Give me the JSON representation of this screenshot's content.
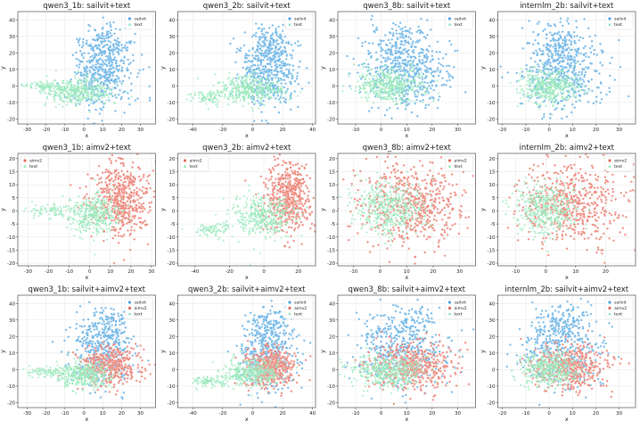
{
  "colors": {
    "sailvit": "#4aa3e0",
    "aimv2": "#e8685a",
    "text": "#6fe0a0"
  },
  "chart_data": [
    {
      "type": "scatter",
      "title": "qwen3_1b: sailvit+text",
      "xlabel": "x",
      "ylabel": "y",
      "xlim": [
        -35,
        38
      ],
      "ylim": [
        -23,
        45
      ],
      "xticks": [
        -30,
        -20,
        -10,
        0,
        10,
        20,
        30
      ],
      "yticks": [
        -20,
        -10,
        0,
        10,
        20,
        30,
        40
      ],
      "grid": true,
      "legend_position": "top-right",
      "series": [
        {
          "name": "sailvit",
          "marker": "circle",
          "color": "#4aa3e0",
          "clusters": [
            {
              "cx": 10,
              "cy": 8,
              "sx": 8,
              "sy": 11,
              "n": 420
            },
            {
              "cx": 12,
              "cy": 25,
              "sx": 6,
              "sy": 7,
              "n": 120
            }
          ]
        },
        {
          "name": "text",
          "marker": "triangle",
          "color": "#6fe0a0",
          "clusters": [
            {
              "cx": -3,
              "cy": -3,
              "sx": 9,
              "sy": 4,
              "n": 380
            },
            {
              "cx": -20,
              "cy": 0,
              "sx": 6,
              "sy": 1.5,
              "n": 80
            }
          ]
        }
      ]
    },
    {
      "type": "scatter",
      "title": "qwen3_2b: sailvit+text",
      "xlabel": "x",
      "ylabel": "y",
      "xlim": [
        -50,
        42
      ],
      "ylim": [
        -23,
        45
      ],
      "xticks": [
        -40,
        -20,
        0,
        20,
        40
      ],
      "yticks": [
        -20,
        -10,
        0,
        10,
        20,
        30,
        40
      ],
      "grid": true,
      "legend_position": "top-right",
      "series": [
        {
          "name": "sailvit",
          "marker": "circle",
          "color": "#4aa3e0",
          "clusters": [
            {
              "cx": 10,
              "cy": 8,
              "sx": 10,
              "sy": 11,
              "n": 420
            },
            {
              "cx": 12,
              "cy": 25,
              "sx": 7,
              "sy": 7,
              "n": 120
            }
          ]
        },
        {
          "name": "text",
          "marker": "triangle",
          "color": "#6fe0a0",
          "clusters": [
            {
              "cx": -2,
              "cy": -2,
              "sx": 11,
              "sy": 4,
              "n": 380
            },
            {
              "cx": -30,
              "cy": -7,
              "sx": 6,
              "sy": 2,
              "n": 80
            }
          ]
        }
      ]
    },
    {
      "type": "scatter",
      "title": "qwen3_8b: sailvit+text",
      "xlabel": "x",
      "ylabel": "y",
      "xlim": [
        -17,
        37
      ],
      "ylim": [
        -23,
        45
      ],
      "xticks": [
        -10,
        0,
        10,
        20,
        30
      ],
      "yticks": [
        -20,
        -10,
        0,
        10,
        20,
        30,
        40
      ],
      "grid": true,
      "legend_position": "top-right",
      "series": [
        {
          "name": "sailvit",
          "marker": "circle",
          "color": "#4aa3e0",
          "clusters": [
            {
              "cx": 9,
              "cy": 8,
              "sx": 9,
              "sy": 12,
              "n": 450
            },
            {
              "cx": 8,
              "cy": 25,
              "sx": 6,
              "sy": 7,
              "n": 120
            }
          ]
        },
        {
          "name": "text",
          "marker": "triangle",
          "color": "#6fe0a0",
          "clusters": [
            {
              "cx": 3,
              "cy": 0,
              "sx": 7,
              "sy": 5,
              "n": 450
            }
          ]
        }
      ]
    },
    {
      "type": "scatter",
      "title": "internlm_2b: sailvit+text",
      "xlabel": "x",
      "ylabel": "y",
      "xlim": [
        -22,
        37
      ],
      "ylim": [
        -23,
        45
      ],
      "xticks": [
        -20,
        -10,
        0,
        10,
        20,
        30
      ],
      "yticks": [
        -20,
        -10,
        0,
        10,
        20,
        30,
        40
      ],
      "grid": true,
      "legend_position": "top-right",
      "series": [
        {
          "name": "sailvit",
          "marker": "circle",
          "color": "#4aa3e0",
          "clusters": [
            {
              "cx": 5,
              "cy": 8,
              "sx": 9,
              "sy": 12,
              "n": 450
            },
            {
              "cx": 5,
              "cy": 25,
              "sx": 6,
              "sy": 7,
              "n": 120
            }
          ]
        },
        {
          "name": "text",
          "marker": "triangle",
          "color": "#6fe0a0",
          "clusters": [
            {
              "cx": 0,
              "cy": 0,
              "sx": 6,
              "sy": 5,
              "n": 420
            }
          ]
        }
      ]
    },
    {
      "type": "scatter",
      "title": "qwen3_1b: aimv2+text",
      "xlabel": "x",
      "ylabel": "y",
      "xlim": [
        -35,
        32
      ],
      "ylim": [
        -21,
        22
      ],
      "xticks": [
        -30,
        -20,
        -10,
        0,
        10,
        20,
        30
      ],
      "yticks": [
        -20,
        -15,
        -10,
        -5,
        0,
        5,
        10,
        15,
        20
      ],
      "grid": true,
      "legend_position": "top-left",
      "series": [
        {
          "name": "aimv2",
          "marker": "circle",
          "color": "#e8685a",
          "clusters": [
            {
              "cx": 15,
              "cy": 5,
              "sx": 7,
              "sy": 7,
              "n": 520
            }
          ]
        },
        {
          "name": "text",
          "marker": "triangle",
          "color": "#6fe0a0",
          "clusters": [
            {
              "cx": 2,
              "cy": -1,
              "sx": 6,
              "sy": 3.5,
              "n": 380
            },
            {
              "cx": -20,
              "cy": 0,
              "sx": 6,
              "sy": 1.2,
              "n": 80
            }
          ]
        }
      ]
    },
    {
      "type": "scatter",
      "title": "qwen3_2b: aimv2+text",
      "xlabel": "x",
      "ylabel": "y",
      "xlim": [
        -50,
        30
      ],
      "ylim": [
        -21,
        22
      ],
      "xticks": [
        -40,
        -20,
        0,
        20
      ],
      "yticks": [
        -20,
        -15,
        -10,
        -5,
        0,
        5,
        10,
        15,
        20
      ],
      "grid": true,
      "legend_position": "top-left",
      "series": [
        {
          "name": "aimv2",
          "marker": "circle",
          "color": "#e8685a",
          "clusters": [
            {
              "cx": 14,
              "cy": 5,
              "sx": 7,
              "sy": 7,
              "n": 520
            }
          ]
        },
        {
          "name": "text",
          "marker": "triangle",
          "color": "#6fe0a0",
          "clusters": [
            {
              "cx": 0,
              "cy": -2,
              "sx": 9,
              "sy": 4,
              "n": 380
            },
            {
              "cx": -30,
              "cy": -7,
              "sx": 6,
              "sy": 1.5,
              "n": 80
            }
          ]
        }
      ]
    },
    {
      "type": "scatter",
      "title": "qwen3_8b: aimv2+text",
      "xlabel": "x",
      "ylabel": "y",
      "xlim": [
        -16,
        36
      ],
      "ylim": [
        -21,
        22
      ],
      "xticks": [
        -10,
        0,
        10,
        20,
        30
      ],
      "yticks": [
        -20,
        -15,
        -10,
        -5,
        0,
        5,
        10,
        15,
        20
      ],
      "grid": true,
      "legend_position": "top-right",
      "series": [
        {
          "name": "aimv2",
          "marker": "circle",
          "color": "#e8685a",
          "clusters": [
            {
              "cx": 12,
              "cy": 3,
              "sx": 10,
              "sy": 8,
              "n": 550
            }
          ]
        },
        {
          "name": "text",
          "marker": "triangle",
          "color": "#6fe0a0",
          "clusters": [
            {
              "cx": 4,
              "cy": 1,
              "sx": 7,
              "sy": 5,
              "n": 450
            }
          ]
        }
      ]
    },
    {
      "type": "scatter",
      "title": "internlm_2b: aimv2+text",
      "xlabel": "x",
      "ylabel": "y",
      "xlim": [
        -16,
        30
      ],
      "ylim": [
        -21,
        22
      ],
      "xticks": [
        -10,
        0,
        10,
        20
      ],
      "yticks": [
        -20,
        -15,
        -10,
        -5,
        0,
        5,
        10,
        15,
        20
      ],
      "grid": true,
      "legend_position": "top-right",
      "series": [
        {
          "name": "aimv2",
          "marker": "circle",
          "color": "#e8685a",
          "clusters": [
            {
              "cx": 8,
              "cy": 3,
              "sx": 9,
              "sy": 8,
              "n": 550
            }
          ]
        },
        {
          "name": "text",
          "marker": "triangle",
          "color": "#6fe0a0",
          "clusters": [
            {
              "cx": 0,
              "cy": 1,
              "sx": 5,
              "sy": 5,
              "n": 420
            }
          ]
        }
      ]
    },
    {
      "type": "scatter",
      "title": "qwen3_1b: sailvit+aimv2+text",
      "xlabel": "x",
      "ylabel": "y",
      "xlim": [
        -35,
        38
      ],
      "ylim": [
        -23,
        45
      ],
      "xticks": [
        -30,
        -20,
        -10,
        0,
        10,
        20,
        30
      ],
      "yticks": [
        -20,
        -10,
        0,
        10,
        20,
        30,
        40
      ],
      "grid": true,
      "legend_position": "top-right",
      "series": [
        {
          "name": "sailvit",
          "marker": "circle",
          "color": "#4aa3e0",
          "clusters": [
            {
              "cx": 10,
              "cy": 10,
              "sx": 8,
              "sy": 11,
              "n": 380
            },
            {
              "cx": 12,
              "cy": 27,
              "sx": 6,
              "sy": 6,
              "n": 100
            }
          ]
        },
        {
          "name": "aimv2",
          "marker": "circle",
          "color": "#e8685a",
          "clusters": [
            {
              "cx": 14,
              "cy": 2,
              "sx": 8,
              "sy": 6,
              "n": 400
            }
          ]
        },
        {
          "name": "text",
          "marker": "triangle",
          "color": "#6fe0a0",
          "clusters": [
            {
              "cx": 0,
              "cy": -3,
              "sx": 7,
              "sy": 4,
              "n": 380
            },
            {
              "cx": -20,
              "cy": -1,
              "sx": 6,
              "sy": 1.5,
              "n": 80
            }
          ]
        }
      ]
    },
    {
      "type": "scatter",
      "title": "qwen3_2b: sailvit+aimv2+text",
      "xlabel": "x",
      "ylabel": "y",
      "xlim": [
        -50,
        42
      ],
      "ylim": [
        -23,
        45
      ],
      "xticks": [
        -40,
        -20,
        0,
        20,
        40
      ],
      "yticks": [
        -20,
        -10,
        0,
        10,
        20,
        30,
        40
      ],
      "grid": true,
      "legend_position": "top-right",
      "series": [
        {
          "name": "sailvit",
          "marker": "circle",
          "color": "#4aa3e0",
          "clusters": [
            {
              "cx": 10,
              "cy": 10,
              "sx": 9,
              "sy": 11,
              "n": 380
            },
            {
              "cx": 12,
              "cy": 27,
              "sx": 7,
              "sy": 6,
              "n": 100
            }
          ]
        },
        {
          "name": "aimv2",
          "marker": "circle",
          "color": "#e8685a",
          "clusters": [
            {
              "cx": 12,
              "cy": 2,
              "sx": 8,
              "sy": 6,
              "n": 400
            }
          ]
        },
        {
          "name": "text",
          "marker": "triangle",
          "color": "#6fe0a0",
          "clusters": [
            {
              "cx": -2,
              "cy": -2,
              "sx": 10,
              "sy": 4,
              "n": 380
            },
            {
              "cx": -30,
              "cy": -7,
              "sx": 6,
              "sy": 1.5,
              "n": 80
            }
          ]
        }
      ]
    },
    {
      "type": "scatter",
      "title": "qwen3_8b: sailvit+aimv2+text",
      "xlabel": "x",
      "ylabel": "y",
      "xlim": [
        -17,
        37
      ],
      "ylim": [
        -23,
        45
      ],
      "xticks": [
        -10,
        0,
        10,
        20,
        30
      ],
      "yticks": [
        -20,
        -10,
        0,
        10,
        20,
        30,
        40
      ],
      "grid": true,
      "legend_position": "top-right",
      "series": [
        {
          "name": "sailvit",
          "marker": "circle",
          "color": "#4aa3e0",
          "clusters": [
            {
              "cx": 8,
              "cy": 12,
              "sx": 9,
              "sy": 11,
              "n": 380
            },
            {
              "cx": 8,
              "cy": 28,
              "sx": 6,
              "sy": 6,
              "n": 100
            }
          ]
        },
        {
          "name": "aimv2",
          "marker": "circle",
          "color": "#e8685a",
          "clusters": [
            {
              "cx": 12,
              "cy": 2,
              "sx": 9,
              "sy": 7,
              "n": 450
            }
          ]
        },
        {
          "name": "text",
          "marker": "triangle",
          "color": "#6fe0a0",
          "clusters": [
            {
              "cx": 3,
              "cy": -1,
              "sx": 7,
              "sy": 5,
              "n": 420
            }
          ]
        }
      ]
    },
    {
      "type": "scatter",
      "title": "internlm_2b: sailvit+aimv2+text",
      "xlabel": "x",
      "ylabel": "y",
      "xlim": [
        -22,
        37
      ],
      "ylim": [
        -23,
        45
      ],
      "xticks": [
        -20,
        -10,
        0,
        10,
        20,
        30
      ],
      "yticks": [
        -20,
        -10,
        0,
        10,
        20,
        30,
        40
      ],
      "grid": true,
      "legend_position": "top-right",
      "series": [
        {
          "name": "sailvit",
          "marker": "circle",
          "color": "#4aa3e0",
          "clusters": [
            {
              "cx": 5,
              "cy": 12,
              "sx": 9,
              "sy": 11,
              "n": 380
            },
            {
              "cx": 5,
              "cy": 28,
              "sx": 6,
              "sy": 6,
              "n": 100
            }
          ]
        },
        {
          "name": "aimv2",
          "marker": "circle",
          "color": "#e8685a",
          "clusters": [
            {
              "cx": 9,
              "cy": 2,
              "sx": 9,
              "sy": 7,
              "n": 450
            }
          ]
        },
        {
          "name": "text",
          "marker": "triangle",
          "color": "#6fe0a0",
          "clusters": [
            {
              "cx": 0,
              "cy": 0,
              "sx": 6,
              "sy": 5,
              "n": 400
            }
          ]
        }
      ]
    }
  ]
}
